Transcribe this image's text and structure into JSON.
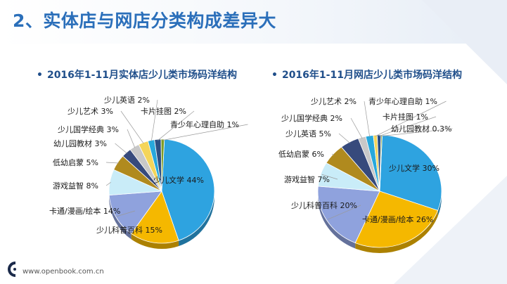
{
  "page": {
    "title": "2、实体店与网店分类构成差异大"
  },
  "footer": {
    "url": "www.openbook.com.cn"
  },
  "chart_data": [
    {
      "type": "pie",
      "title": "2016年1-11月实体店少儿类市场码洋结构",
      "slices": [
        {
          "label": "少儿文学",
          "value": 44,
          "color": "#2ea3e0"
        },
        {
          "label": "少儿科普百科",
          "value": 15,
          "color": "#f5b800"
        },
        {
          "label": "卡通/漫画/绘本",
          "value": 14,
          "color": "#8fa2dd"
        },
        {
          "label": "游戏益智",
          "value": 8,
          "color": "#c9ecf8"
        },
        {
          "label": "低幼启蒙",
          "value": 5,
          "color": "#b08a1e"
        },
        {
          "label": "幼儿园教材",
          "value": 3,
          "color": "#374a7c"
        },
        {
          "label": "少儿国学经典",
          "value": 3,
          "color": "#c8c8c8"
        },
        {
          "label": "少儿艺术",
          "value": 3,
          "color": "#f4d55a"
        },
        {
          "label": "少儿英语",
          "value": 2,
          "color": "#27a8dc"
        },
        {
          "label": "卡片挂图",
          "value": 2,
          "color": "#2c4f83"
        },
        {
          "label": "青少年心理自助",
          "value": 1,
          "color": "#7f9c26"
        }
      ]
    },
    {
      "type": "pie",
      "title": "2016年1-11月网店少儿类市场码洋结构",
      "slices": [
        {
          "label": "少儿文学",
          "value": 30,
          "color": "#2ea3e0"
        },
        {
          "label": "卡通/漫画/绘本",
          "value": 26,
          "color": "#f5b800"
        },
        {
          "label": "少儿科普百科",
          "value": 20,
          "color": "#8fa2dd"
        },
        {
          "label": "游戏益智",
          "value": 7,
          "color": "#c9ecf8"
        },
        {
          "label": "低幼启蒙",
          "value": 6,
          "color": "#b08a1e"
        },
        {
          "label": "少儿英语",
          "value": 5,
          "color": "#374a7c"
        },
        {
          "label": "少儿国学经典",
          "value": 2,
          "color": "#c8c8c8"
        },
        {
          "label": "少儿艺术",
          "value": 2,
          "color": "#27a8dc"
        },
        {
          "label": "青少年心理自助",
          "value": 1,
          "color": "#f4d55a"
        },
        {
          "label": "卡片挂图",
          "value": 1,
          "color": "#2c4f83"
        },
        {
          "label": "幼儿园教材",
          "value": 0.3,
          "color": "#7f9c26"
        }
      ]
    }
  ]
}
